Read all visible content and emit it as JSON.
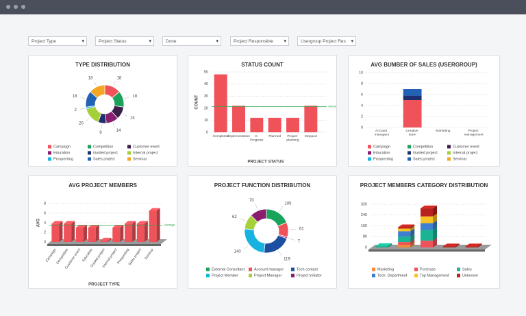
{
  "filters": [
    "Project Type",
    "Project Status",
    "Done",
    "Project Responsible",
    "Usergroup Project Res"
  ],
  "chart_data": [
    {
      "type": "donut",
      "title": "TYPE DISTRIBUTION",
      "categories": [
        "Campaign",
        "Competition",
        "Customer event",
        "Education",
        "Guided project",
        "Internal project",
        "Prospecting",
        "Sales project",
        "Seminar"
      ],
      "values": [
        18,
        18,
        14,
        14,
        9,
        20,
        2,
        18,
        18
      ],
      "colors": [
        "#f0525a",
        "#1aa35a",
        "#3b1f4a",
        "#8a1e6e",
        "#1d2f6e",
        "#a6d03a",
        "#16b3e0",
        "#2162b5",
        "#f5a623"
      ],
      "legend": "bottom"
    },
    {
      "type": "bar",
      "title": "STATUS COUNT",
      "xlabel": "PROJECT STATUS",
      "ylabel": "COUNT",
      "categories": [
        "Completed",
        "Implementation",
        "In Progress",
        "Planned",
        "Project planning",
        "Stopped"
      ],
      "values": [
        48,
        22,
        12,
        12,
        12,
        22
      ],
      "color": "#f0525a",
      "average": 21.3,
      "average_label": "Average",
      "average_color": "#2fa84f",
      "ylim": [
        0,
        50
      ],
      "yticks": [
        0,
        10,
        20,
        30,
        40,
        50
      ],
      "grid": true
    },
    {
      "type": "stacked-bar",
      "title": "AVG BUMBER OF SALES (USERGROUP)",
      "categories": [
        "Account managers",
        "Creative team",
        "Marketing",
        "Project management"
      ],
      "series": [
        {
          "name": "Campaign",
          "color": "#f0525a",
          "values": [
            0,
            5,
            0,
            0
          ]
        },
        {
          "name": "Competition",
          "color": "#1aa35a",
          "values": [
            0,
            0,
            0,
            0
          ]
        },
        {
          "name": "Customer event",
          "color": "#3b1f4a",
          "values": [
            0,
            0,
            0,
            0
          ]
        },
        {
          "name": "Education",
          "color": "#8a1e6e",
          "values": [
            0,
            0,
            0,
            0
          ]
        },
        {
          "name": "Guided project",
          "color": "#1d2f6e",
          "values": [
            0,
            0.8,
            0,
            0
          ]
        },
        {
          "name": "Internal project",
          "color": "#a6d03a",
          "values": [
            0,
            0,
            0,
            0
          ]
        },
        {
          "name": "Prospecting",
          "color": "#16b3e0",
          "values": [
            0,
            0,
            0,
            0
          ]
        },
        {
          "name": "Sales project",
          "color": "#2162b5",
          "values": [
            0,
            1.2,
            0,
            0
          ]
        },
        {
          "name": "Seminar",
          "color": "#f5a623",
          "values": [
            0,
            0,
            0,
            0
          ]
        }
      ],
      "ylim": [
        0,
        10
      ],
      "yticks": [
        0,
        2,
        4,
        6,
        8,
        10
      ],
      "grid": true,
      "legend": "bottom"
    },
    {
      "type": "bar3d",
      "title": "AVG PROJECT MEMBERS",
      "xlabel": "PROJECT TYPE",
      "ylabel": "AVG",
      "categories": [
        "Campaign",
        "Competition",
        "Customer event",
        "Education",
        "Guided project",
        "Internal project",
        "Prospecting",
        "Sales project",
        "Seminar"
      ],
      "values": [
        3.8,
        3.8,
        3,
        3,
        0.3,
        3,
        3.8,
        3.8,
        6.5
      ],
      "color": "#f0525a",
      "average": 3.5,
      "average_label": "Average",
      "average_color": "#2fa84f",
      "ylim": [
        0,
        8
      ],
      "yticks": [
        0,
        2,
        4,
        6,
        8
      ],
      "grid": true
    },
    {
      "type": "donut",
      "title": "PROJECT FUNCTION DISTRIBUTION",
      "categories": [
        "External Consultant",
        "Account manager",
        null,
        "Tech contact",
        "Project Member",
        "Project Manager",
        "Project Initiator"
      ],
      "values": [
        105,
        61,
        7,
        119,
        140,
        62,
        70
      ],
      "colors": [
        "#1aa35a",
        "#f0525a",
        "#b03a8c",
        "#1d4fa0",
        "#16b3e0",
        "#a6d03a",
        "#8a1e6e"
      ],
      "legend": "bottom"
    },
    {
      "type": "stacked-bar3d",
      "title": "PROJECT MEMBERS CATEGORY DISTRIBUTION",
      "categories": [
        null,
        null,
        null,
        null,
        null
      ],
      "series": [
        {
          "name": "Marketing",
          "color": "#f5883a",
          "values": [
            0,
            20,
            0,
            0,
            0
          ]
        },
        {
          "name": "Purchase",
          "color": "#f0525a",
          "values": [
            0,
            20,
            50,
            0,
            0
          ]
        },
        {
          "name": "Sales",
          "color": "#1ab394",
          "values": [
            10,
            40,
            80,
            0,
            0
          ]
        },
        {
          "name": "Tech. Department",
          "color": "#3f7fd0",
          "values": [
            0,
            40,
            50,
            0,
            0
          ]
        },
        {
          "name": "Top Management",
          "color": "#f7c325",
          "values": [
            0,
            20,
            50,
            0,
            0
          ]
        },
        {
          "name": "Unknown",
          "color": "#b8231e",
          "values": [
            0,
            10,
            60,
            8,
            8
          ]
        }
      ],
      "ylim": [
        0,
        320
      ],
      "yticks": [
        0,
        80,
        160,
        240,
        320
      ],
      "grid": true,
      "legend": "bottom"
    }
  ]
}
